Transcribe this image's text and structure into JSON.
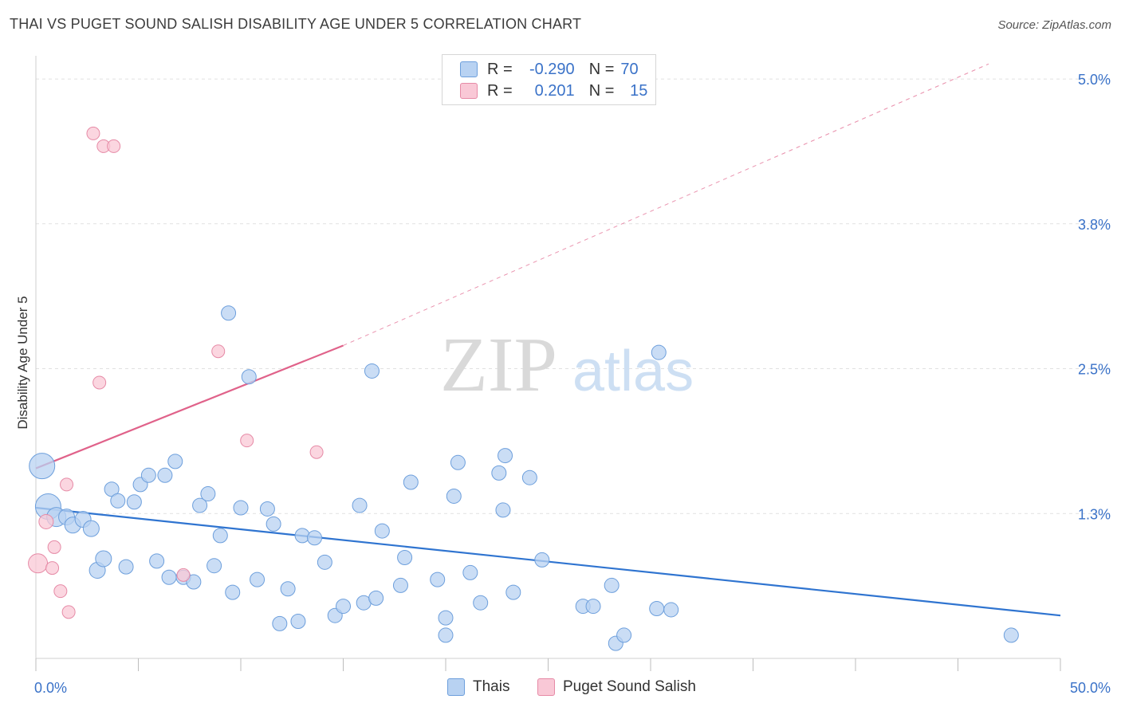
{
  "title": "THAI VS PUGET SOUND SALISH DISABILITY AGE UNDER 5 CORRELATION CHART",
  "source": "Source: ZipAtlas.com",
  "watermark": {
    "zip": "ZIP",
    "atlas": "atlas"
  },
  "legend": {
    "rows": [
      {
        "r_label": "R =",
        "r_value": "-0.290",
        "n_label": "N =",
        "n_value": "70"
      },
      {
        "r_label": "R =",
        "r_value": "0.201",
        "n_label": "N =",
        "n_value": "15"
      }
    ]
  },
  "bottom_legend": [
    {
      "label": "Thais"
    },
    {
      "label": "Puget Sound Salish"
    }
  ],
  "colors": {
    "thais_fill": "#b8d2f2",
    "thais_stroke": "#6d9fdc",
    "thais_line": "#2f74d0",
    "salish_fill": "#f9c8d6",
    "salish_stroke": "#e68aa6",
    "salish_line": "#e0628a",
    "axis_text": "#3a72c8",
    "grid": "#e1e1e1"
  },
  "chart_data": {
    "type": "scatter",
    "ylabel": "Disability Age Under 5",
    "xlim": [
      0,
      50
    ],
    "ylim": [
      0,
      5.2
    ],
    "x_tick_labels": [
      "0.0%",
      "50.0%"
    ],
    "y_ticks": [
      {
        "value": 1.25,
        "label": "1.3%"
      },
      {
        "value": 2.5,
        "label": "2.5%"
      },
      {
        "value": 3.75,
        "label": "3.8%"
      },
      {
        "value": 5.0,
        "label": "5.0%"
      }
    ],
    "series": [
      {
        "name": "Thais",
        "trend": {
          "x": [
            0,
            50
          ],
          "y": [
            1.3,
            0.37
          ]
        },
        "points": [
          [
            0.3,
            1.66,
            16
          ],
          [
            0.6,
            1.31,
            16
          ],
          [
            1.0,
            1.22,
            12
          ],
          [
            1.5,
            1.22,
            10
          ],
          [
            1.8,
            1.15,
            10
          ],
          [
            2.3,
            1.2,
            10
          ],
          [
            2.7,
            1.12,
            10
          ],
          [
            3.0,
            0.76,
            10
          ],
          [
            3.3,
            0.86,
            10
          ],
          [
            3.7,
            1.46,
            9
          ],
          [
            4.0,
            1.36,
            9
          ],
          [
            4.4,
            0.79,
            9
          ],
          [
            4.8,
            1.35,
            9
          ],
          [
            5.1,
            1.5,
            9
          ],
          [
            5.5,
            1.58,
            9
          ],
          [
            5.9,
            0.84,
            9
          ],
          [
            6.3,
            1.58,
            9
          ],
          [
            6.5,
            0.7,
            9
          ],
          [
            6.8,
            1.7,
            9
          ],
          [
            7.2,
            0.7,
            9
          ],
          [
            7.7,
            0.66,
            9
          ],
          [
            8.0,
            1.32,
            9
          ],
          [
            8.4,
            1.42,
            9
          ],
          [
            8.7,
            0.8,
            9
          ],
          [
            9.0,
            1.06,
            9
          ],
          [
            9.4,
            2.98,
            9
          ],
          [
            9.6,
            0.57,
            9
          ],
          [
            10.0,
            1.3,
            9
          ],
          [
            10.4,
            2.43,
            9
          ],
          [
            10.8,
            0.68,
            9
          ],
          [
            11.3,
            1.29,
            9
          ],
          [
            11.6,
            1.16,
            9
          ],
          [
            11.9,
            0.3,
            9
          ],
          [
            12.3,
            0.6,
            9
          ],
          [
            12.8,
            0.32,
            9
          ],
          [
            13.0,
            1.06,
            9
          ],
          [
            13.6,
            1.04,
            9
          ],
          [
            14.1,
            0.83,
            9
          ],
          [
            14.6,
            0.37,
            9
          ],
          [
            15.0,
            0.45,
            9
          ],
          [
            15.8,
            1.32,
            9
          ],
          [
            16.0,
            0.48,
            9
          ],
          [
            16.4,
            2.48,
            9
          ],
          [
            16.6,
            0.52,
            9
          ],
          [
            16.9,
            1.1,
            9
          ],
          [
            18.0,
            0.87,
            9
          ],
          [
            18.3,
            1.52,
            9
          ],
          [
            17.8,
            0.63,
            9
          ],
          [
            19.6,
            0.68,
            9
          ],
          [
            20.0,
            0.35,
            9
          ],
          [
            20.0,
            0.2,
            9
          ],
          [
            20.4,
            1.4,
            9
          ],
          [
            20.6,
            1.69,
            9
          ],
          [
            21.2,
            0.74,
            9
          ],
          [
            21.7,
            0.48,
            9
          ],
          [
            22.6,
            1.6,
            9
          ],
          [
            22.8,
            1.28,
            9
          ],
          [
            22.9,
            1.75,
            9
          ],
          [
            23.3,
            0.57,
            9
          ],
          [
            24.1,
            1.56,
            9
          ],
          [
            24.7,
            0.85,
            9
          ],
          [
            26.7,
            0.45,
            9
          ],
          [
            27.2,
            0.45,
            9
          ],
          [
            28.1,
            0.63,
            9
          ],
          [
            28.3,
            0.13,
            9
          ],
          [
            28.7,
            0.2,
            9
          ],
          [
            30.3,
            0.43,
            9
          ],
          [
            30.4,
            2.64,
            9
          ],
          [
            31.0,
            0.42,
            9
          ],
          [
            47.6,
            0.2,
            9
          ]
        ]
      },
      {
        "name": "Puget Sound Salish",
        "trend": {
          "x": [
            0,
            15
          ],
          "y": [
            1.64,
            2.7
          ]
        },
        "trend_extension": {
          "x": [
            15,
            46.5
          ],
          "y": [
            2.7,
            5.13
          ]
        },
        "points": [
          [
            0.1,
            0.82,
            12
          ],
          [
            0.5,
            1.18,
            9
          ],
          [
            0.8,
            0.78,
            8
          ],
          [
            0.9,
            0.96,
            8
          ],
          [
            1.2,
            0.58,
            8
          ],
          [
            1.5,
            1.5,
            8
          ],
          [
            1.6,
            0.4,
            8
          ],
          [
            2.8,
            4.53,
            8
          ],
          [
            3.3,
            4.42,
            8
          ],
          [
            3.8,
            4.42,
            8
          ],
          [
            3.1,
            2.38,
            8
          ],
          [
            7.2,
            0.72,
            8
          ],
          [
            8.9,
            2.65,
            8
          ],
          [
            10.3,
            1.88,
            8
          ],
          [
            13.7,
            1.78,
            8
          ]
        ]
      }
    ]
  }
}
